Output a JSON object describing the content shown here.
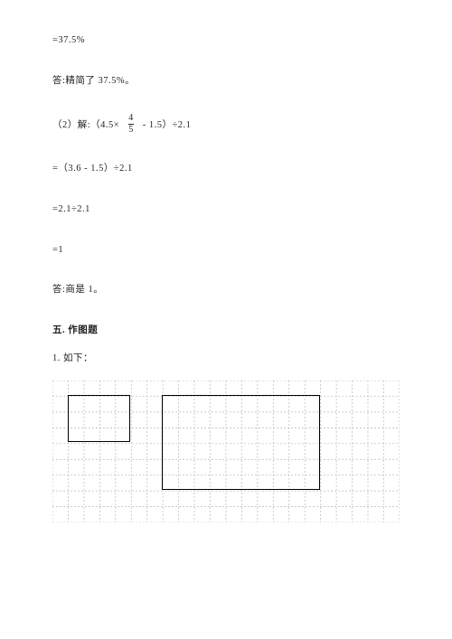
{
  "lines": {
    "l1": "=37.5%",
    "l2": "答:精简了 37.5%。",
    "l3_pre": "（2）解:（4.5×",
    "l3_post": "  - 1.5）÷2.1",
    "fraction": {
      "num": "4",
      "den": "5"
    },
    "l4": "=（3.6 - 1.5）÷2.1",
    "l5": "=2.1÷2.1",
    "l6": "=1",
    "l7": "答:商是 1。"
  },
  "section": {
    "heading": "五. 作图题",
    "sub": "1. 如下："
  },
  "grid": {
    "cols": 22,
    "rows": 9,
    "cell": 17.45,
    "stroke": "#b9b9b9",
    "dash": "2,2",
    "stroke_width": 0.7,
    "rect_color": "#000000",
    "rect_width": 1.6,
    "rects": [
      {
        "col": 1,
        "row": 1,
        "w": 4,
        "h": 3
      },
      {
        "col": 7,
        "row": 1,
        "w": 10,
        "h": 6
      }
    ]
  }
}
